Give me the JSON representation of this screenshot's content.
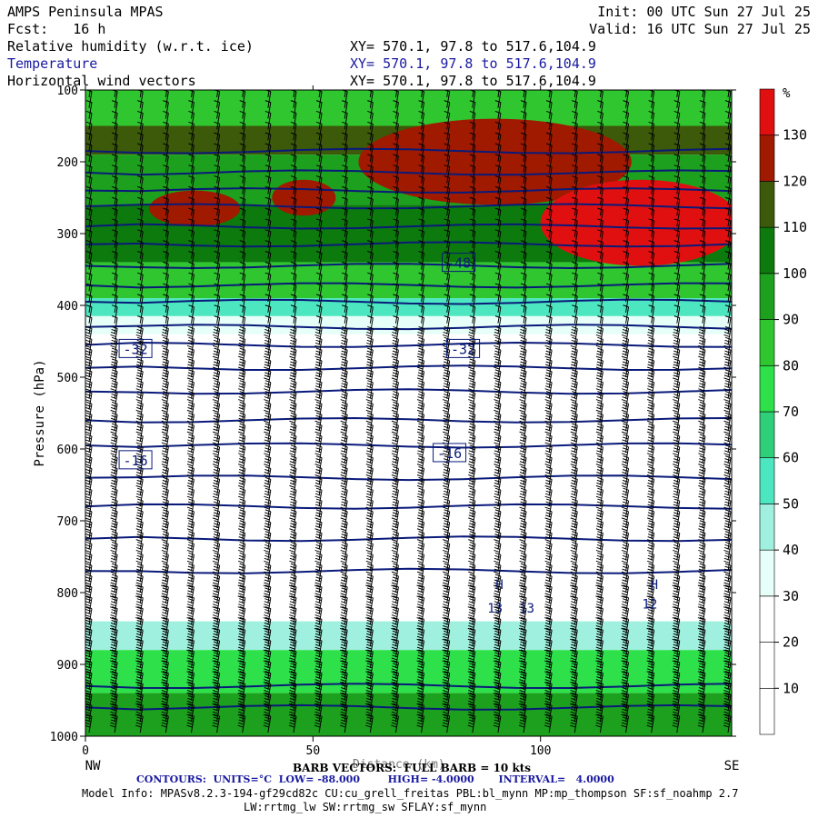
{
  "header": {
    "title": "AMPS Peninsula MPAS",
    "fcst": "Fcst:   16 h",
    "init": "Init: 00 UTC Sun 27 Jul 25",
    "valid": "Valid: 16 UTC Sun 27 Jul 25",
    "fields": [
      {
        "name": "Relative humidity (w.r.t. ice)",
        "xy": "XY= 570.1, 97.8 to 517.6,104.9"
      },
      {
        "name": "Temperature",
        "xy": "XY= 570.1, 97.8 to 517.6,104.9"
      },
      {
        "name": "Horizontal wind vectors",
        "xy": "XY= 570.1, 97.8 to 517.6,104.9"
      }
    ]
  },
  "footer": {
    "barb_line": "BARB VECTORS:  FULL BARB = 10 kts",
    "xlabel_overlap": "Distance (km)",
    "contours_line": "CONTOURS:  UNITS=°C  LOW= -88.000        HIGH= -4.0000       INTERVAL=   4.0000",
    "model_info_1": "Model Info: MPASv8.2.3-194-gf29cd82c CU:cu_grell_freitas PBL:bl_mynn MP:mp_thompson SF:sf_noahmp 2.7",
    "model_info_2": "LW:rrtmg_lw SW:rrtmg_sw SFLAY:sf_mynn"
  },
  "colors": {
    "rh_ramp": [
      "#ffffff",
      "#ffffff",
      "#ffffff",
      "#e6fff8",
      "#a0f0e0",
      "#4ce6c0",
      "#2fcf7a",
      "#2ee04a",
      "#2fc62f",
      "#1da01d",
      "#0d7a0d",
      "#3c5a0a",
      "#a01a00",
      "#e01010",
      "#ff2020"
    ],
    "contour": "#0a1a7a",
    "barb": "#000000"
  },
  "chart_data": {
    "type": "heatmap",
    "title": "",
    "xlabel": "Distance (km)",
    "ylabel": "Pressure (hPa)",
    "xlim": [
      0,
      142
    ],
    "ylim": [
      1000,
      100
    ],
    "x_ticks": [
      0,
      50,
      100
    ],
    "y_ticks": [
      100,
      200,
      300,
      400,
      500,
      600,
      700,
      800,
      900,
      1000
    ],
    "x_end_labels": {
      "left": "NW",
      "right": "SE"
    },
    "colorbar": {
      "unit": "%",
      "ticks": [
        10,
        20,
        30,
        40,
        50,
        60,
        70,
        80,
        90,
        100,
        110,
        120,
        130
      ],
      "levels": [
        0,
        10,
        20,
        30,
        40,
        50,
        60,
        70,
        80,
        90,
        100,
        110,
        120,
        130,
        140
      ]
    },
    "rh_regions": [
      {
        "p_top": 100,
        "p_bot": 150,
        "level": 85
      },
      {
        "p_top": 150,
        "p_bot": 190,
        "level": 115
      },
      {
        "p_top": 190,
        "p_bot": 260,
        "level": 95
      },
      {
        "p_top": 260,
        "p_bot": 340,
        "level": 102
      },
      {
        "p_top": 340,
        "p_bot": 390,
        "level": 85
      },
      {
        "p_top": 390,
        "p_bot": 415,
        "level": 55
      },
      {
        "p_top": 415,
        "p_bot": 440,
        "level": 35
      },
      {
        "p_top": 840,
        "p_bot": 880,
        "level": 40
      },
      {
        "p_top": 880,
        "p_bot": 940,
        "level": 75
      },
      {
        "p_top": 940,
        "p_bot": 1000,
        "level": 92
      }
    ],
    "rh_blobs": [
      {
        "x": 90,
        "p": 200,
        "rx": 30,
        "rp": 60,
        "level": 125
      },
      {
        "x": 122,
        "p": 285,
        "rx": 22,
        "rp": 60,
        "level": 130
      },
      {
        "x": 24,
        "p": 265,
        "rx": 10,
        "rp": 25,
        "level": 120
      },
      {
        "x": 48,
        "p": 250,
        "rx": 7,
        "rp": 25,
        "level": 120
      }
    ],
    "temperature_contours": [
      {
        "p": 185
      },
      {
        "p": 215
      },
      {
        "p": 240
      },
      {
        "p": 262
      },
      {
        "p": 290
      },
      {
        "p": 315
      },
      {
        "p": 345
      },
      {
        "p": 372
      },
      {
        "p": 395
      },
      {
        "p": 430
      },
      {
        "p": 455
      },
      {
        "p": 487
      },
      {
        "p": 520
      },
      {
        "p": 560
      },
      {
        "p": 595
      },
      {
        "p": 640
      },
      {
        "p": 680
      },
      {
        "p": 725
      },
      {
        "p": 770
      },
      {
        "p": 930
      },
      {
        "p": 960
      }
    ],
    "contour_labels": [
      {
        "text": "-48",
        "x": 82,
        "p": 340
      },
      {
        "text": "-32",
        "x": 11,
        "p": 460
      },
      {
        "text": "-32",
        "x": 83,
        "p": 460
      },
      {
        "text": "-16",
        "x": 11,
        "p": 615
      },
      {
        "text": "-16",
        "x": 80,
        "p": 605
      }
    ],
    "annotations": [
      {
        "text": "H",
        "x": 91,
        "p": 795
      },
      {
        "text": "H",
        "x": 125,
        "p": 795
      },
      {
        "text": "13",
        "x": 90,
        "p": 828
      },
      {
        "text": "13",
        "x": 97,
        "p": 828
      },
      {
        "text": "12",
        "x": 124,
        "p": 822
      }
    ]
  }
}
